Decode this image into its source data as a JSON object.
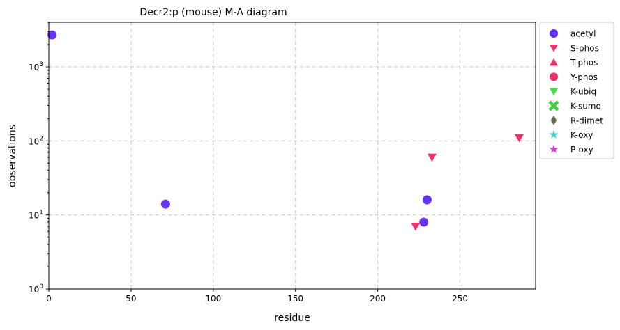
{
  "chart_data": {
    "type": "scatter",
    "title": "Decr2:p (mouse) M-A diagram",
    "xlabel": "residue",
    "ylabel": "observations",
    "xlim": [
      0,
      296
    ],
    "ylim": [
      1,
      4000
    ],
    "yscale": "log",
    "grid": true,
    "legend_placement": "outside-right",
    "x_ticks": [
      "0",
      "50",
      "100",
      "150",
      "200",
      "250"
    ],
    "x_tick_values": [
      0,
      50,
      100,
      150,
      200,
      250
    ],
    "y_ticks": [
      {
        "base": "10",
        "exp": "0"
      },
      {
        "base": "10",
        "exp": "1"
      },
      {
        "base": "10",
        "exp": "2"
      },
      {
        "base": "10",
        "exp": "3"
      }
    ],
    "y_tick_values": [
      1,
      10,
      100,
      1000
    ],
    "series": [
      {
        "name": "acetyl",
        "marker": "circle",
        "color": "#6633ee",
        "points": [
          {
            "x": 2,
            "y": 2700
          },
          {
            "x": 71,
            "y": 14
          },
          {
            "x": 228,
            "y": 8
          },
          {
            "x": 230,
            "y": 16
          }
        ]
      },
      {
        "name": "S-phos",
        "marker": "triangle-down",
        "color": "#f0326b",
        "points": [
          {
            "x": 223,
            "y": 7
          },
          {
            "x": 233,
            "y": 60
          },
          {
            "x": 286,
            "y": 110
          }
        ]
      },
      {
        "name": "T-phos",
        "marker": "triangle-up",
        "color": "#f0326b",
        "points": []
      },
      {
        "name": "Y-phos",
        "marker": "circle",
        "color": "#f0326b",
        "points": []
      },
      {
        "name": "K-ubiq",
        "marker": "triangle-down",
        "color": "#44dd44",
        "points": []
      },
      {
        "name": "K-sumo",
        "marker": "x",
        "color": "#44cc44",
        "points": []
      },
      {
        "name": "R-dimet",
        "marker": "diamond",
        "color": "#6b6b47",
        "points": []
      },
      {
        "name": "K-oxy",
        "marker": "star",
        "color": "#44cccc",
        "points": []
      },
      {
        "name": "P-oxy",
        "marker": "star",
        "color": "#cc44cc",
        "points": []
      }
    ]
  }
}
